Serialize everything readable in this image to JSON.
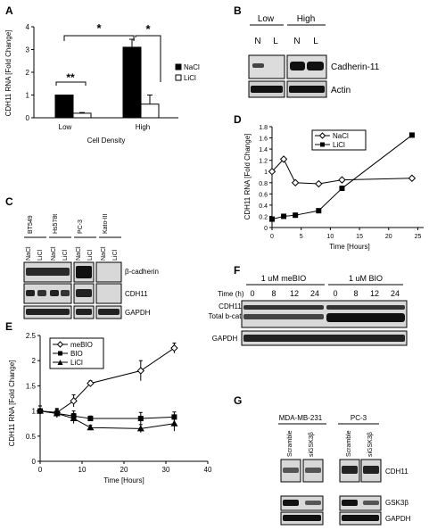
{
  "panels": {
    "A": "A",
    "B": "B",
    "C": "C",
    "D": "D",
    "E": "E",
    "F": "F",
    "G": "G"
  },
  "colors": {
    "black": "#000000",
    "white": "#ffffff",
    "blot_bg": "#d9d9d9",
    "band_dark": "#1a1a1a"
  },
  "panel_a": {
    "ylabel": "CDH11 RNA [Fold Change]",
    "xlabel": "Cell Density",
    "yticks": [
      "0",
      "1",
      "2",
      "3",
      "4"
    ],
    "groups": [
      "Low",
      "High"
    ],
    "legend": [
      "NaCl",
      "LiCl"
    ],
    "sig_low": "**",
    "sig_between": "*",
    "sig_high": "*"
  },
  "panel_b": {
    "groups": [
      "Low",
      "High"
    ],
    "lanes": [
      "N",
      "L",
      "N",
      "L"
    ],
    "rows": [
      "Cadherin-11",
      "Actin"
    ]
  },
  "panel_c": {
    "cell_lines": [
      "BT549",
      "Hs578t",
      "PC-3",
      "Kato-III"
    ],
    "lanes": [
      "NaCl",
      "LiCl",
      "NaCl",
      "LiCl",
      "NaCl",
      "LiCl",
      "NaCl",
      "LiCl"
    ],
    "rows": [
      "β-cadherin",
      "CDH11",
      "GAPDH"
    ]
  },
  "panel_d": {
    "ylabel": "CDH11 RNA [Fold Change]",
    "xlabel": "Time [Hours]",
    "yticks": [
      "0",
      "0.2",
      "0.4",
      "0.6",
      "0.8",
      "1",
      "1.2",
      "1.4",
      "1.6",
      "1.8"
    ],
    "xticks": [
      "0",
      "5",
      "10",
      "15",
      "20",
      "25"
    ],
    "legend": [
      "NaCl",
      "LiCl"
    ]
  },
  "panel_e": {
    "ylabel": "CDH11 RNA [Fold Change]",
    "xlabel": "Time [Hours]",
    "yticks": [
      "0",
      "0.5",
      "1",
      "1.5",
      "2",
      "2.5"
    ],
    "xticks": [
      "0",
      "10",
      "20",
      "30",
      "40"
    ],
    "legend": [
      "meBIO",
      "BIO",
      "LiCl"
    ]
  },
  "panel_f": {
    "conditions": [
      "1 uM meBIO",
      "1 uM BIO"
    ],
    "time_label": "Time (h)",
    "times": [
      "0",
      "8",
      "12",
      "24",
      "0",
      "8",
      "12",
      "24"
    ],
    "rows": [
      "CDH11",
      "Total b-cat",
      "GAPDH"
    ]
  },
  "panel_g": {
    "cell_lines": [
      "MDA-MB-231",
      "PC-3"
    ],
    "lanes": [
      "Scramble",
      "siGSK3β",
      "Scramble",
      "siGSK3β"
    ],
    "rows": [
      "CDH11",
      "GSK3β",
      "GAPDH"
    ]
  },
  "chart_data": [
    {
      "type": "bar",
      "categories": [
        "Low",
        "High"
      ],
      "series": [
        {
          "name": "NaCl",
          "values": [
            1.0,
            3.1
          ],
          "errors": [
            0,
            0.35
          ]
        },
        {
          "name": "LiCl",
          "values": [
            0.2,
            0.6
          ],
          "errors": [
            0.03,
            0.4
          ]
        }
      ],
      "ylabel": "CDH11 RNA [Fold Change]",
      "xlabel": "Cell Density",
      "ylim": [
        0,
        4
      ]
    },
    {
      "type": "line",
      "series": [
        {
          "name": "NaCl",
          "x": [
            0,
            2,
            4,
            8,
            12,
            24
          ],
          "y": [
            1.0,
            1.22,
            0.8,
            0.78,
            0.85,
            0.88
          ]
        },
        {
          "name": "LiCl",
          "x": [
            0,
            2,
            4,
            8,
            12,
            24
          ],
          "y": [
            0.15,
            0.2,
            0.22,
            0.3,
            0.7,
            1.65
          ]
        }
      ],
      "ylabel": "CDH11 RNA [Fold Change]",
      "xlabel": "Time [Hours]",
      "xlim": [
        0,
        26
      ],
      "ylim": [
        0,
        1.8
      ]
    },
    {
      "type": "line",
      "series": [
        {
          "name": "meBIO",
          "x": [
            0,
            4,
            8,
            12,
            24,
            32
          ],
          "y": [
            1.0,
            0.97,
            1.2,
            1.55,
            1.8,
            2.25
          ],
          "errors": [
            0.1,
            0.08,
            0.12,
            0.05,
            0.2,
            0.1
          ]
        },
        {
          "name": "BIO",
          "x": [
            0,
            4,
            8,
            12,
            24,
            32
          ],
          "y": [
            1.0,
            0.95,
            0.9,
            0.85,
            0.85,
            0.88
          ],
          "errors": [
            0.1,
            0.08,
            0.1,
            0.05,
            0.12,
            0.1
          ]
        },
        {
          "name": "LiCl",
          "x": [
            0,
            4,
            8,
            12,
            24,
            32
          ],
          "y": [
            1.0,
            0.95,
            0.85,
            0.67,
            0.65,
            0.75
          ],
          "errors": [
            0.1,
            0.08,
            0.1,
            0.05,
            0.08,
            0.15
          ]
        }
      ],
      "ylabel": "CDH11 RNA [Fold Change]",
      "xlabel": "Time [Hours]",
      "xlim": [
        0,
        40
      ],
      "ylim": [
        0,
        2.5
      ]
    }
  ]
}
